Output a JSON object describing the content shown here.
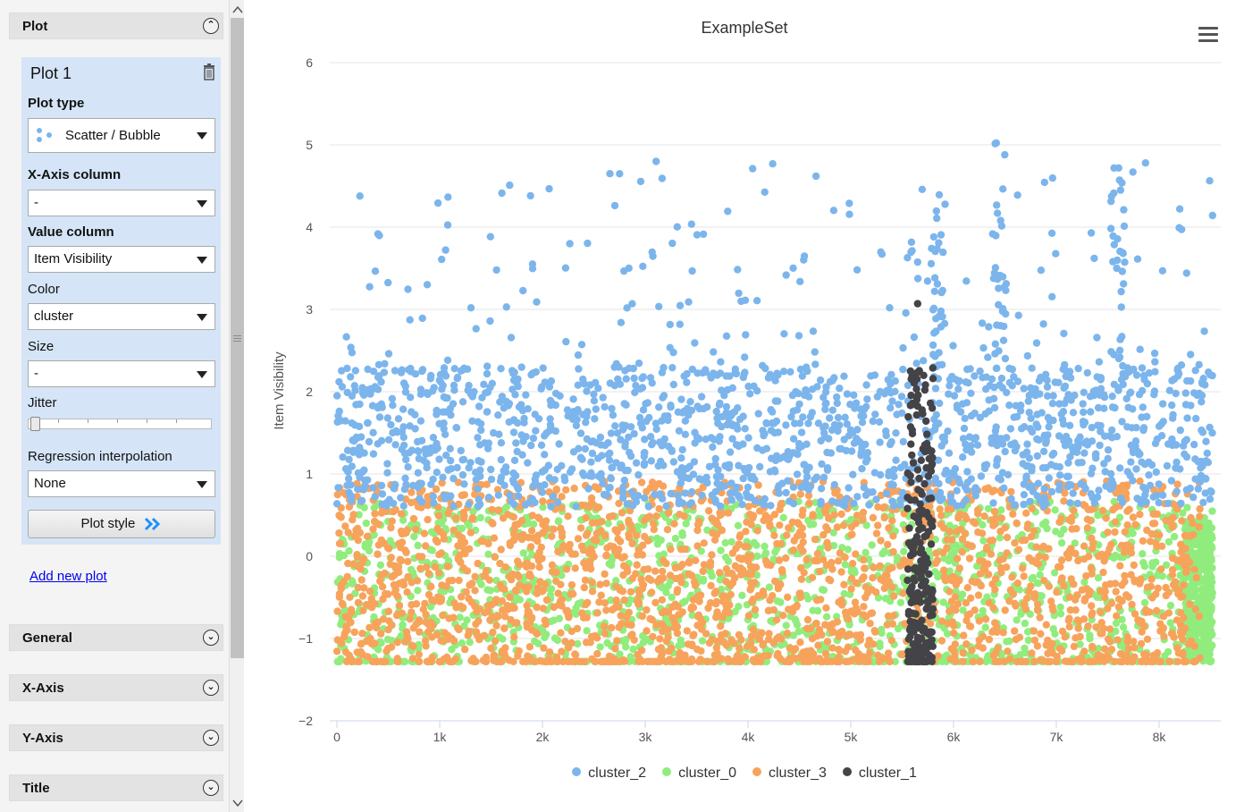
{
  "panel": {
    "plot_section": {
      "title": "Plot",
      "icon": "collapse-up-icon"
    },
    "plot1": {
      "title": "Plot 1",
      "plot_type_label": "Plot type",
      "plot_type_value": "Scatter / Bubble",
      "x_axis_label": "X-Axis column",
      "x_axis_value": "-",
      "value_column_label": "Value column",
      "value_column_value": "Item Visibility",
      "color_label": "Color",
      "color_value": "cluster",
      "size_label": "Size",
      "size_value": "-",
      "jitter_label": "Jitter",
      "jitter_value": 0,
      "regression_label": "Regression interpolation",
      "regression_value": "None",
      "plot_style_label": "Plot style"
    },
    "add_new_plot": "Add new plot",
    "sections": [
      {
        "title": "General",
        "icon": "expand-down-icon"
      },
      {
        "title": "X-Axis",
        "icon": "expand-down-icon"
      },
      {
        "title": "Y-Axis",
        "icon": "expand-down-icon"
      },
      {
        "title": "Title",
        "icon": "expand-down-icon"
      }
    ]
  },
  "chart": {
    "title": "ExampleSet",
    "menu_icon": "hamburger-menu-icon",
    "y_ticks": [
      "6",
      "5",
      "4",
      "3",
      "2",
      "1",
      "0",
      "−1",
      "−2"
    ],
    "x_ticks": [
      "0",
      "1k",
      "2k",
      "3k",
      "4k",
      "5k",
      "6k",
      "7k",
      "8k"
    ],
    "legend": [
      {
        "name": "cluster_2",
        "color": "#7cb5ec"
      },
      {
        "name": "cluster_0",
        "color": "#90ed7d"
      },
      {
        "name": "cluster_3",
        "color": "#f7a35c"
      },
      {
        "name": "cluster_1",
        "color": "#434348"
      }
    ]
  },
  "chart_data": {
    "type": "scatter",
    "title": "ExampleSet",
    "xlabel": "",
    "ylabel": "Item Visibility",
    "xlim": [
      0,
      8523
    ],
    "ylim": [
      -2,
      6
    ],
    "grid": true,
    "legend_position": "bottom",
    "series": [
      {
        "name": "cluster_2",
        "color": "#7cb5ec",
        "x_range": [
          0,
          8523
        ],
        "y_range": [
          0.55,
          5.1
        ],
        "approx_points": 2200,
        "typical_y": [
          0.6,
          2.3
        ]
      },
      {
        "name": "cluster_0",
        "color": "#90ed7d",
        "x_range": [
          0,
          8523
        ],
        "y_range": [
          -1.28,
          0.7
        ],
        "approx_points": 2900
      },
      {
        "name": "cluster_3",
        "color": "#f7a35c",
        "x_range": [
          0,
          8400
        ],
        "y_range": [
          -1.28,
          1.0
        ],
        "approx_points": 3200
      },
      {
        "name": "cluster_1",
        "color": "#434348",
        "x_range": [
          5550,
          5800
        ],
        "y_range": [
          -1.28,
          3.07
        ],
        "approx_points": 220
      }
    ]
  }
}
